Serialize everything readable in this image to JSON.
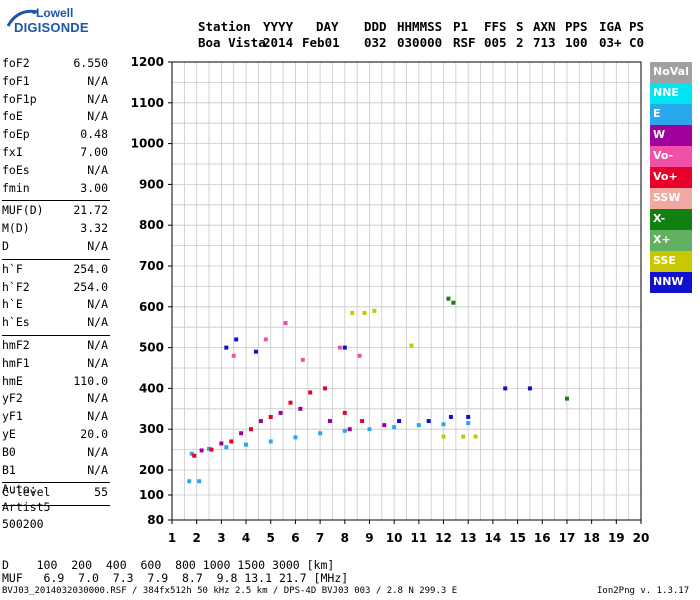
{
  "logo": {
    "line1": "Lowell",
    "line2": "DIGISONDE"
  },
  "header": {
    "labels": [
      "Station",
      "YYYY",
      "DAY",
      "DDD",
      "HHMMSS",
      "P1",
      "FFS",
      "S",
      "AXN",
      "PPS",
      "IGA",
      "PS"
    ],
    "values": [
      "Boa Vista",
      "2014",
      "Feb01",
      "032",
      "030000",
      "RSF",
      "005",
      "2",
      "713",
      "100",
      "03+",
      "C0"
    ]
  },
  "params_group1": [
    {
      "k": "foF2",
      "v": "6.550"
    },
    {
      "k": "foF1",
      "v": "N/A"
    },
    {
      "k": "foF1p",
      "v": "N/A"
    },
    {
      "k": "foE",
      "v": "N/A"
    },
    {
      "k": "foEp",
      "v": "0.48"
    },
    {
      "k": "fxI",
      "v": "7.00"
    },
    {
      "k": "foEs",
      "v": "N/A"
    },
    {
      "k": "fmin",
      "v": "3.00"
    }
  ],
  "params_group2": [
    {
      "k": "MUF(D)",
      "v": "21.72"
    },
    {
      "k": "M(D)",
      "v": "3.32"
    },
    {
      "k": "D",
      "v": "N/A"
    }
  ],
  "params_group3": [
    {
      "k": "h`F",
      "v": "254.0"
    },
    {
      "k": "h`F2",
      "v": "254.0"
    },
    {
      "k": "h`E",
      "v": "N/A"
    },
    {
      "k": "h`Es",
      "v": "N/A"
    }
  ],
  "params_group4": [
    {
      "k": "hmF2",
      "v": "N/A"
    },
    {
      "k": "hmF1",
      "v": "N/A"
    },
    {
      "k": "hmE",
      "v": "110.0"
    },
    {
      "k": "yF2",
      "v": "N/A"
    },
    {
      "k": "yF1",
      "v": "N/A"
    },
    {
      "k": "yE",
      "v": "20.0"
    },
    {
      "k": "B0",
      "v": "N/A"
    },
    {
      "k": "B1",
      "v": "N/A"
    }
  ],
  "params_group5": [
    {
      "k": "C-level",
      "v": "55"
    }
  ],
  "auto": {
    "line1": "Auto:",
    "line2": "Artist5",
    "line3": "500200"
  },
  "muf_table": {
    "d_row": "D    100  200  400  600  800 1000 1500 3000 [km]",
    "muf_row": "MUF   6.9  7.0  7.3  7.9  8.7  9.8 13.1 21.7 [MHz]"
  },
  "footer": {
    "left": "BVJ03_2014032030000.RSF / 384fx512h 50 kHz 2.5 km / DPS-4D BVJ03 003 / 2.8 N 299.3 E",
    "right": "Ion2Png v. 1.3.17"
  },
  "legend": [
    {
      "label": "NoVal",
      "color": "#a0a0a0"
    },
    {
      "label": "NNE",
      "color": "#00e6f0"
    },
    {
      "label": "E",
      "color": "#2aa8ee"
    },
    {
      "label": "W",
      "color": "#a0009e"
    },
    {
      "label": "Vo-",
      "color": "#f050a8"
    },
    {
      "label": "Vo+",
      "color": "#e8002a"
    },
    {
      "label": "SSW",
      "color": "#f0a8a0"
    },
    {
      "label": "X-",
      "color": "#108010"
    },
    {
      "label": "X+",
      "color": "#60b060"
    },
    {
      "label": "SSE",
      "color": "#c8c800"
    },
    {
      "label": "NNW",
      "color": "#1010d0"
    }
  ],
  "chart_data": {
    "type": "scatter",
    "title": "",
    "xlabel": "",
    "ylabel": "",
    "x_ticks": [
      1,
      2,
      3,
      4,
      5,
      6,
      7,
      8,
      9,
      10,
      11,
      12,
      13,
      14,
      15,
      16,
      17,
      18,
      19,
      20
    ],
    "y_ticks": [
      80,
      100,
      200,
      300,
      400,
      500,
      600,
      700,
      800,
      900,
      1000,
      1100,
      1200
    ],
    "xlim": [
      1,
      20
    ],
    "ylim": [
      80,
      1200
    ],
    "grid": true,
    "series": [
      {
        "name": "E",
        "color": "#2aa8ee",
        "points": [
          [
            1.8,
            240
          ],
          [
            2.5,
            252
          ],
          [
            3.2,
            256
          ],
          [
            4,
            262
          ],
          [
            5,
            270
          ],
          [
            6,
            280
          ],
          [
            7,
            290
          ],
          [
            8,
            296
          ],
          [
            9,
            300
          ],
          [
            10,
            305
          ],
          [
            11,
            310
          ],
          [
            12,
            312
          ],
          [
            13,
            315
          ],
          [
            1.7,
            155
          ],
          [
            2.1,
            155
          ]
        ]
      },
      {
        "name": "Vo+",
        "color": "#e8002a",
        "points": [
          [
            1.9,
            235
          ],
          [
            2.6,
            250
          ],
          [
            3.4,
            270
          ],
          [
            4.2,
            300
          ],
          [
            5,
            330
          ],
          [
            5.8,
            365
          ],
          [
            6.6,
            390
          ],
          [
            7.2,
            400
          ],
          [
            8,
            340
          ],
          [
            8.7,
            320
          ]
        ]
      },
      {
        "name": "W",
        "color": "#a0009e",
        "points": [
          [
            2.2,
            248
          ],
          [
            3,
            265
          ],
          [
            3.8,
            290
          ],
          [
            4.6,
            320
          ],
          [
            5.4,
            340
          ],
          [
            6.2,
            350
          ],
          [
            7.4,
            320
          ],
          [
            8.2,
            300
          ],
          [
            9.6,
            310
          ]
        ]
      },
      {
        "name": "NNW",
        "color": "#1010d0",
        "points": [
          [
            3.2,
            500
          ],
          [
            3.6,
            520
          ],
          [
            4.4,
            490
          ],
          [
            8,
            500
          ],
          [
            10.2,
            320
          ],
          [
            11.4,
            320
          ],
          [
            12.3,
            330
          ],
          [
            13,
            330
          ],
          [
            14.5,
            400
          ],
          [
            15.5,
            400
          ]
        ]
      },
      {
        "name": "Vo-",
        "color": "#f050a8",
        "points": [
          [
            3.5,
            480
          ],
          [
            4.8,
            520
          ],
          [
            5.6,
            560
          ],
          [
            6.3,
            470
          ],
          [
            7.8,
            500
          ],
          [
            8.6,
            480
          ]
        ]
      },
      {
        "name": "SSE",
        "color": "#c8c800",
        "points": [
          [
            8.3,
            585
          ],
          [
            8.8,
            585
          ],
          [
            9.2,
            590
          ],
          [
            10.7,
            505
          ],
          [
            12,
            282
          ],
          [
            12.8,
            282
          ],
          [
            13.3,
            282
          ]
        ]
      },
      {
        "name": "X-",
        "color": "#108010",
        "points": [
          [
            12.2,
            620
          ],
          [
            12.4,
            610
          ],
          [
            17,
            375
          ]
        ]
      }
    ]
  }
}
